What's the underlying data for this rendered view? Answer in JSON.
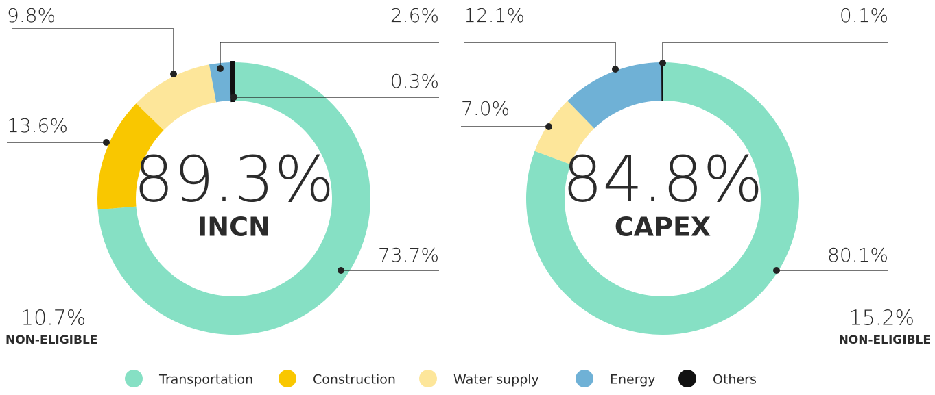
{
  "chart_data": [
    {
      "type": "donut",
      "center_text": "89.3%",
      "center_caption": "INCN",
      "non_eligible_value": "10.7%",
      "non_eligible_label": "NON-ELIGIBLE",
      "categories": [
        "Transportation",
        "Construction",
        "Water supply",
        "Energy",
        "Others"
      ],
      "values": [
        73.7,
        13.6,
        9.8,
        2.6,
        0.3
      ],
      "value_labels": [
        "73.7%",
        "13.6%",
        "9.8%",
        "2.6%",
        "0.3%"
      ],
      "colors": [
        "#86e0c4",
        "#f9c700",
        "#fde69a",
        "#6fb1d6",
        "#111111"
      ]
    },
    {
      "type": "donut",
      "center_text": "84.8%",
      "center_caption": "CAPEX",
      "non_eligible_value": "15.2%",
      "non_eligible_label": "NON-ELIGIBLE",
      "categories": [
        "Transportation",
        "Water supply",
        "Energy",
        "Others"
      ],
      "values": [
        80.1,
        7.0,
        12.1,
        0.1
      ],
      "value_labels": [
        "80.1%",
        "7.0%",
        "12.1%",
        "0.1%"
      ],
      "colors": [
        "#86e0c4",
        "#fde69a",
        "#6fb1d6",
        "#111111"
      ]
    }
  ]
}
